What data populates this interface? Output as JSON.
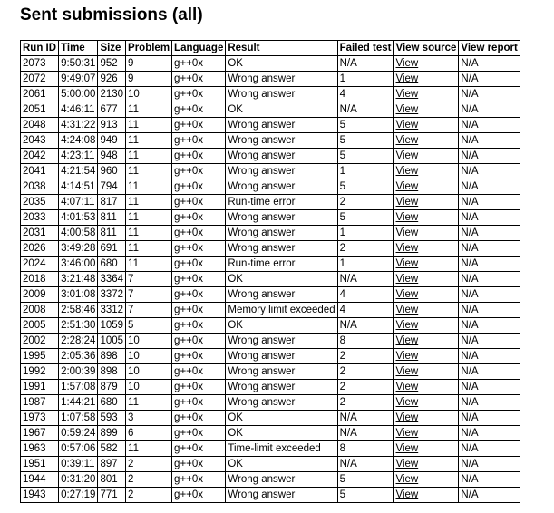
{
  "title": "Sent submissions (all)",
  "columns": [
    "Run ID",
    "Time",
    "Size",
    "Problem",
    "Language",
    "Result",
    "Failed test",
    "View source",
    "View report"
  ],
  "rows": [
    [
      "2073",
      "9:50:31",
      "952",
      "9",
      "g++0x",
      "OK",
      "N/A",
      "View",
      "N/A"
    ],
    [
      "2072",
      "9:49:07",
      "926",
      "9",
      "g++0x",
      "Wrong answer",
      "1",
      "View",
      "N/A"
    ],
    [
      "2061",
      "5:00:00",
      "2130",
      "10",
      "g++0x",
      "Wrong answer",
      "4",
      "View",
      "N/A"
    ],
    [
      "2051",
      "4:46:11",
      "677",
      "11",
      "g++0x",
      "OK",
      "N/A",
      "View",
      "N/A"
    ],
    [
      "2048",
      "4:31:22",
      "913",
      "11",
      "g++0x",
      "Wrong answer",
      "5",
      "View",
      "N/A"
    ],
    [
      "2043",
      "4:24:08",
      "949",
      "11",
      "g++0x",
      "Wrong answer",
      "5",
      "View",
      "N/A"
    ],
    [
      "2042",
      "4:23:11",
      "948",
      "11",
      "g++0x",
      "Wrong answer",
      "5",
      "View",
      "N/A"
    ],
    [
      "2041",
      "4:21:54",
      "960",
      "11",
      "g++0x",
      "Wrong answer",
      "1",
      "View",
      "N/A"
    ],
    [
      "2038",
      "4:14:51",
      "794",
      "11",
      "g++0x",
      "Wrong answer",
      "5",
      "View",
      "N/A"
    ],
    [
      "2035",
      "4:07:11",
      "817",
      "11",
      "g++0x",
      "Run-time error",
      "2",
      "View",
      "N/A"
    ],
    [
      "2033",
      "4:01:53",
      "811",
      "11",
      "g++0x",
      "Wrong answer",
      "5",
      "View",
      "N/A"
    ],
    [
      "2031",
      "4:00:58",
      "811",
      "11",
      "g++0x",
      "Wrong answer",
      "1",
      "View",
      "N/A"
    ],
    [
      "2026",
      "3:49:28",
      "691",
      "11",
      "g++0x",
      "Wrong answer",
      "2",
      "View",
      "N/A"
    ],
    [
      "2024",
      "3:46:00",
      "680",
      "11",
      "g++0x",
      "Run-time error",
      "1",
      "View",
      "N/A"
    ],
    [
      "2018",
      "3:21:48",
      "3364",
      "7",
      "g++0x",
      "OK",
      "N/A",
      "View",
      "N/A"
    ],
    [
      "2009",
      "3:01:08",
      "3372",
      "7",
      "g++0x",
      "Wrong answer",
      "4",
      "View",
      "N/A"
    ],
    [
      "2008",
      "2:58:46",
      "3312",
      "7",
      "g++0x",
      "Memory limit exceeded",
      "4",
      "View",
      "N/A"
    ],
    [
      "2005",
      "2:51:30",
      "1059",
      "5",
      "g++0x",
      "OK",
      "N/A",
      "View",
      "N/A"
    ],
    [
      "2002",
      "2:28:24",
      "1005",
      "10",
      "g++0x",
      "Wrong answer",
      "8",
      "View",
      "N/A"
    ],
    [
      "1995",
      "2:05:36",
      "898",
      "10",
      "g++0x",
      "Wrong answer",
      "2",
      "View",
      "N/A"
    ],
    [
      "1992",
      "2:00:39",
      "898",
      "10",
      "g++0x",
      "Wrong answer",
      "2",
      "View",
      "N/A"
    ],
    [
      "1991",
      "1:57:08",
      "879",
      "10",
      "g++0x",
      "Wrong answer",
      "2",
      "View",
      "N/A"
    ],
    [
      "1987",
      "1:44:21",
      "680",
      "11",
      "g++0x",
      "Wrong answer",
      "2",
      "View",
      "N/A"
    ],
    [
      "1973",
      "1:07:58",
      "593",
      "3",
      "g++0x",
      "OK",
      "N/A",
      "View",
      "N/A"
    ],
    [
      "1967",
      "0:59:24",
      "899",
      "6",
      "g++0x",
      "OK",
      "N/A",
      "View",
      "N/A"
    ],
    [
      "1963",
      "0:57:06",
      "582",
      "11",
      "g++0x",
      "Time-limit exceeded",
      "8",
      "View",
      "N/A"
    ],
    [
      "1951",
      "0:39:11",
      "897",
      "2",
      "g++0x",
      "OK",
      "N/A",
      "View",
      "N/A"
    ],
    [
      "1944",
      "0:31:20",
      "801",
      "2",
      "g++0x",
      "Wrong answer",
      "5",
      "View",
      "N/A"
    ],
    [
      "1943",
      "0:27:19",
      "771",
      "2",
      "g++0x",
      "Wrong answer",
      "5",
      "View",
      "N/A"
    ]
  ]
}
